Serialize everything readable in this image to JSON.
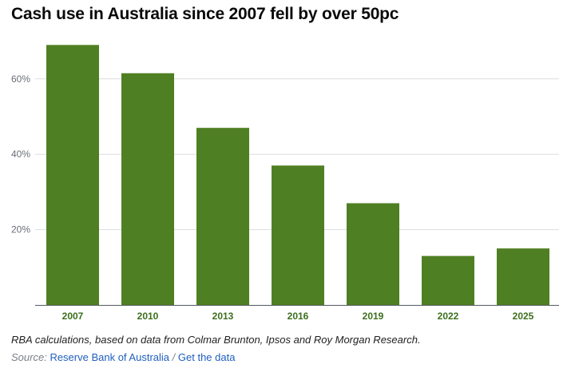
{
  "chart_data": {
    "type": "bar",
    "title": "Cash use in Australia since 2007 fell by over 50pc",
    "categories": [
      "2007",
      "2010",
      "2013",
      "2016",
      "2019",
      "2022",
      "2025"
    ],
    "values": [
      69,
      61.5,
      47,
      37,
      27,
      13,
      15
    ],
    "unit": "%",
    "ylim": [
      0,
      70
    ],
    "yticks": [
      20,
      40,
      60
    ],
    "ytick_labels": [
      "20%",
      "40%",
      "60%"
    ],
    "grid": true,
    "bar_color": "#4f7f23",
    "tick_label_color": "#3c6e1e",
    "xlabel": "",
    "ylabel": ""
  },
  "footer": {
    "note": "RBA calculations, based on data from Colmar Brunton, Ipsos and Roy Morgan Research.",
    "source_label": "Source:",
    "source_name": "Reserve Bank of Australia",
    "separator": "/",
    "get_data_label": "Get the data",
    "link_color": "#1f5fbf"
  }
}
